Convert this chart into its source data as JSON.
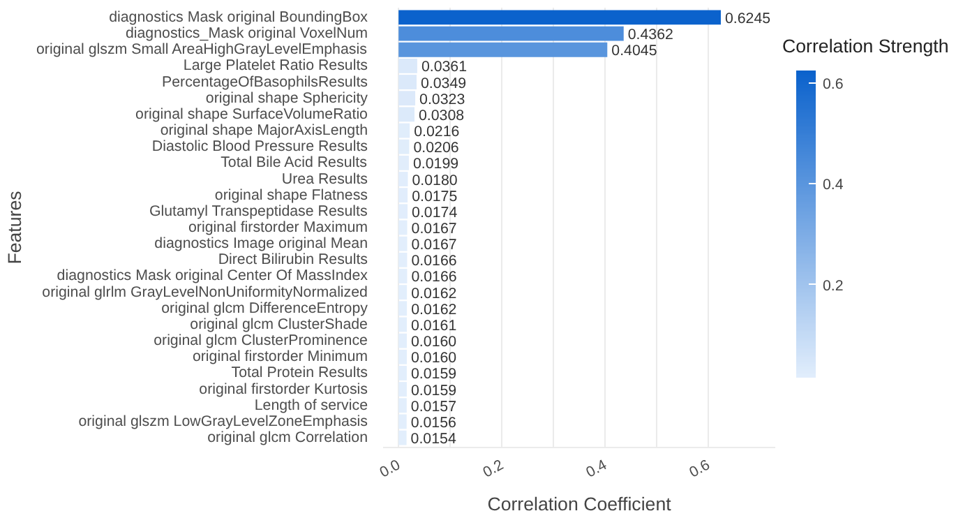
{
  "chart_data": {
    "type": "bar",
    "orientation": "horizontal",
    "xlabel": "Correlation Coefficient",
    "ylabel": "Features",
    "clabel": "Correlation Strength",
    "categories": [
      "diagnostics Mask original BoundingBox",
      "diagnostics_Mask original VoxelNum",
      "original glszm Small AreaHighGrayLevelEmphasis",
      "Large Platelet Ratio Results",
      "PercentageOfBasophilsResults",
      "original shape Sphericity",
      "original shape SurfaceVolumeRatio",
      "original shape MajorAxisLength",
      "Diastolic Blood Pressure Results",
      "Total Bile Acid Results",
      "Urea Results",
      "original shape Flatness",
      "Glutamyl Transpeptidase Results",
      "original firstorder Maximum",
      "diagnostics Image original Mean",
      "Direct Bilirubin Results",
      "diagnostics Mask original Center Of MassIndex",
      "original glrlm GrayLevelNonUniformityNormalized",
      "original glcm DifferenceEntropy",
      "original glcm ClusterShade",
      "original glcm ClusterProminence",
      "original firstorder Minimum",
      "Total Protein Results",
      "original firstorder Kurtosis",
      "Length of service",
      "original glszm LowGrayLevelZoneEmphasis",
      "original glcm Correlation"
    ],
    "values": [
      0.6245,
      0.4362,
      0.4045,
      0.0361,
      0.0349,
      0.0323,
      0.0308,
      0.0216,
      0.0206,
      0.0199,
      0.018,
      0.0175,
      0.0174,
      0.0167,
      0.0167,
      0.0166,
      0.0166,
      0.0162,
      0.0162,
      0.0161,
      0.016,
      0.016,
      0.0159,
      0.0159,
      0.0157,
      0.0156,
      0.0154
    ],
    "colors": [
      "#0b62cc",
      "#4d8ddb",
      "#5995dd",
      "#dbe9fa",
      "#dbe9fa",
      "#dce9fa",
      "#dceafa",
      "#e0edfb",
      "#e0edfb",
      "#e1edfb",
      "#e1edfc",
      "#e1edfc",
      "#e1edfc",
      "#e2eefc",
      "#e2eefc",
      "#e2eefc",
      "#e2eefc",
      "#e2eefc",
      "#e2eefc",
      "#e2eefc",
      "#e2eefc",
      "#e2eefc",
      "#e2eefc",
      "#e2eefc",
      "#e2eefc",
      "#e2eefc",
      "#e2eefc"
    ],
    "value_labels": [
      "0.6245",
      "0.4362",
      "0.4045",
      "0.0361",
      "0.0349",
      "0.0323",
      "0.0308",
      "0.0216",
      "0.0206",
      "0.0199",
      "0.0180",
      "0.0175",
      "0.0174",
      "0.0167",
      "0.0167",
      "0.0166",
      "0.0166",
      "0.0162",
      "0.0162",
      "0.0161",
      "0.0160",
      "0.0160",
      "0.0159",
      "0.0159",
      "0.0157",
      "0.0156",
      "0.0154"
    ],
    "xlim": [
      -0.03,
      0.73
    ],
    "xticks": [
      {
        "value": 0.0,
        "label": "0.0"
      },
      {
        "value": 0.1,
        "label": null
      },
      {
        "value": 0.2,
        "label": "0.2"
      },
      {
        "value": 0.3,
        "label": null
      },
      {
        "value": 0.4,
        "label": "0.4"
      },
      {
        "value": 0.5,
        "label": null
      },
      {
        "value": 0.6,
        "label": "0.6"
      }
    ],
    "clim": [
      0.0154,
      0.6245
    ],
    "cticks": [
      0.2,
      0.4,
      0.6
    ],
    "grid": "x"
  }
}
